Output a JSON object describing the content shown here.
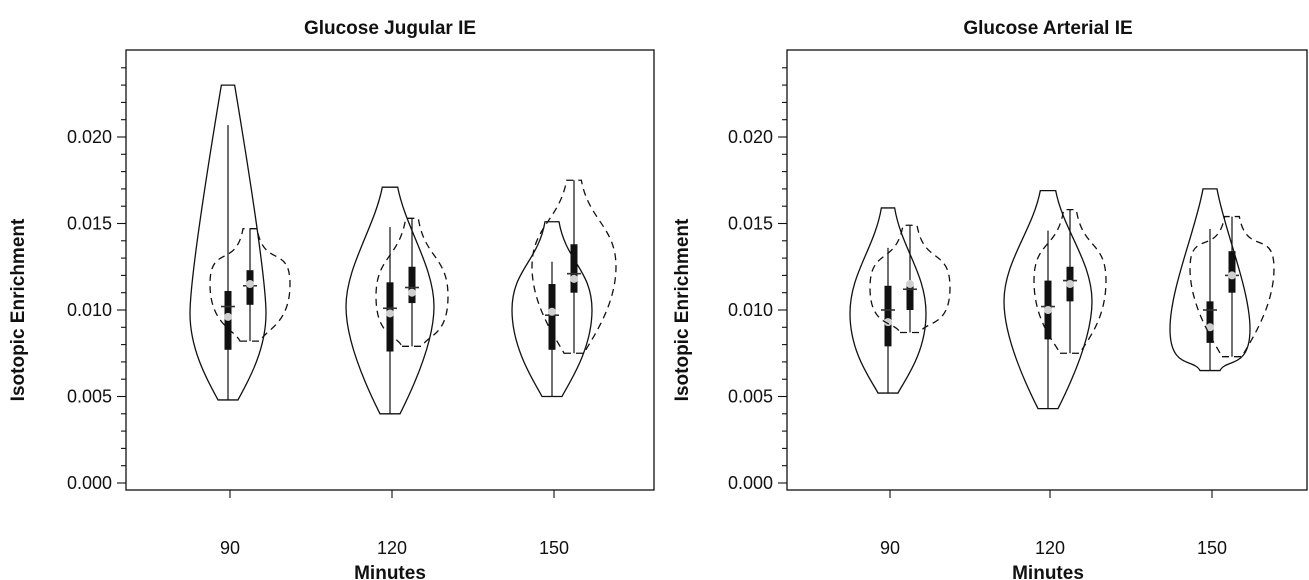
{
  "chart_data": [
    {
      "type": "violin",
      "title": "Glucose Jugular IE",
      "xlabel": "Minutes",
      "ylabel": "Isotopic Enrichment",
      "ylim": [
        0.0,
        0.0245
      ],
      "yticks": [
        "0.000",
        "0.005",
        "0.010",
        "0.015",
        "0.020"
      ],
      "categories": [
        "90",
        "120",
        "150"
      ],
      "series": [
        {
          "style": "solid",
          "values": [
            {
              "min": 0.0048,
              "max": 0.023,
              "q1": 0.0077,
              "median": 0.0096,
              "q3": 0.0111,
              "mean": 0.0102,
              "widest_at": 0.0098
            },
            {
              "min": 0.004,
              "max": 0.0171,
              "q1": 0.0076,
              "median": 0.0098,
              "q3": 0.0116,
              "mean": 0.0101,
              "widest_at": 0.0102
            },
            {
              "min": 0.005,
              "max": 0.0151,
              "q1": 0.0077,
              "median": 0.0099,
              "q3": 0.0115,
              "mean": 0.0097,
              "widest_at": 0.01
            }
          ]
        },
        {
          "style": "dashed",
          "values": [
            {
              "min": 0.0082,
              "max": 0.0147,
              "q1": 0.0103,
              "median": 0.0115,
              "q3": 0.0123,
              "mean": 0.0114,
              "widest_at": 0.0115
            },
            {
              "min": 0.0079,
              "max": 0.0153,
              "q1": 0.0104,
              "median": 0.011,
              "q3": 0.0125,
              "mean": 0.0113,
              "widest_at": 0.0108
            },
            {
              "min": 0.0075,
              "max": 0.0175,
              "q1": 0.011,
              "median": 0.0118,
              "q3": 0.0138,
              "mean": 0.0121,
              "widest_at": 0.0125
            }
          ]
        }
      ]
    },
    {
      "type": "violin",
      "title": "Glucose Arterial IE",
      "xlabel": "Minutes",
      "ylabel": "Isotopic Enrichment",
      "ylim": [
        0.0,
        0.0245
      ],
      "yticks": [
        "0.000",
        "0.005",
        "0.010",
        "0.015",
        "0.020"
      ],
      "categories": [
        "90",
        "120",
        "150"
      ],
      "series": [
        {
          "style": "solid",
          "values": [
            {
              "min": 0.0052,
              "max": 0.0159,
              "q1": 0.0079,
              "median": 0.0093,
              "q3": 0.0114,
              "mean": 0.01,
              "widest_at": 0.0098
            },
            {
              "min": 0.0043,
              "max": 0.0169,
              "q1": 0.0083,
              "median": 0.01,
              "q3": 0.0117,
              "mean": 0.0102,
              "widest_at": 0.0105
            },
            {
              "min": 0.0065,
              "max": 0.017,
              "q1": 0.0081,
              "median": 0.009,
              "q3": 0.0105,
              "mean": 0.01,
              "widest_at": 0.0089
            }
          ]
        },
        {
          "style": "dashed",
          "values": [
            {
              "min": 0.0087,
              "max": 0.0149,
              "q1": 0.01,
              "median": 0.0115,
              "q3": 0.0115,
              "mean": 0.0112,
              "widest_at": 0.0113
            },
            {
              "min": 0.0075,
              "max": 0.0158,
              "q1": 0.0105,
              "median": 0.0115,
              "q3": 0.0125,
              "mean": 0.0117,
              "widest_at": 0.0117
            },
            {
              "min": 0.0073,
              "max": 0.0154,
              "q1": 0.011,
              "median": 0.012,
              "q3": 0.0134,
              "mean": 0.012,
              "widest_at": 0.0124
            }
          ]
        }
      ]
    }
  ]
}
